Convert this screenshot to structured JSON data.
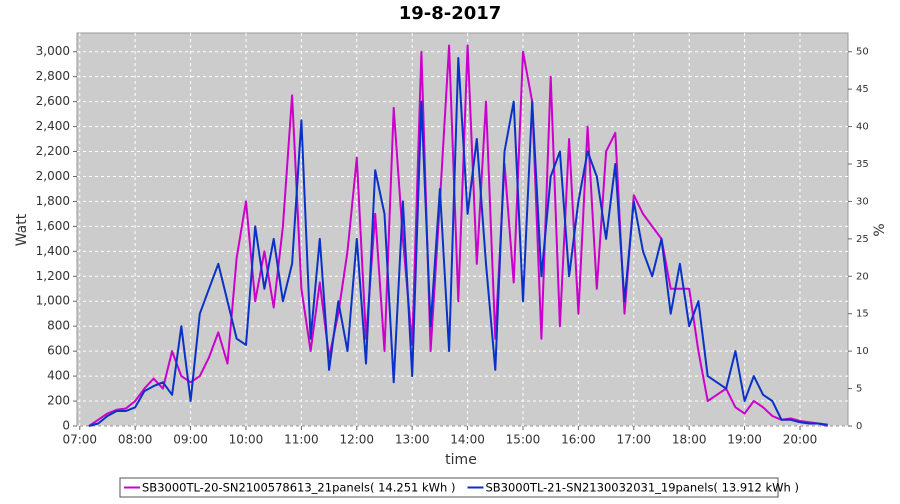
{
  "chart_data": {
    "type": "line",
    "title": "19-8-2017",
    "x_label": "time",
    "y_label": "Watt",
    "y2_label": "%",
    "x": [
      "07:10",
      "07:20",
      "07:30",
      "07:40",
      "07:50",
      "08:00",
      "08:10",
      "08:20",
      "08:30",
      "08:40",
      "08:50",
      "09:00",
      "09:10",
      "09:20",
      "09:30",
      "09:40",
      "09:50",
      "10:00",
      "10:10",
      "10:20",
      "10:30",
      "10:40",
      "10:50",
      "11:00",
      "11:10",
      "11:20",
      "11:30",
      "11:40",
      "11:50",
      "12:00",
      "12:10",
      "12:20",
      "12:30",
      "12:40",
      "12:50",
      "13:00",
      "13:10",
      "13:20",
      "13:30",
      "13:40",
      "13:50",
      "14:00",
      "14:10",
      "14:20",
      "14:30",
      "14:40",
      "14:50",
      "15:00",
      "15:10",
      "15:20",
      "15:30",
      "15:40",
      "15:50",
      "16:00",
      "16:10",
      "16:20",
      "16:30",
      "16:40",
      "16:50",
      "17:00",
      "17:10",
      "17:20",
      "17:30",
      "17:40",
      "17:50",
      "18:00",
      "18:10",
      "18:20",
      "18:30",
      "18:40",
      "18:50",
      "19:00",
      "19:10",
      "19:20",
      "19:30",
      "19:40",
      "19:50",
      "20:00",
      "20:10",
      "20:20",
      "20:30"
    ],
    "series": [
      {
        "name": "SB3000TL-20-SN2100578613_21panels( 14.251 kWh )",
        "color": "#cc00cc",
        "values": [
          0,
          50,
          100,
          130,
          140,
          200,
          300,
          380,
          300,
          600,
          400,
          350,
          400,
          550,
          750,
          500,
          1350,
          1800,
          1000,
          1400,
          950,
          1600,
          2650,
          1100,
          600,
          1150,
          550,
          900,
          1400,
          2150,
          700,
          1700,
          600,
          2550,
          1500,
          650,
          3000,
          600,
          1800,
          3050,
          1000,
          3050,
          1300,
          2600,
          700,
          2100,
          1150,
          3000,
          2600,
          700,
          2800,
          800,
          2300,
          900,
          2400,
          1100,
          2200,
          2350,
          900,
          1850,
          1700,
          1600,
          1500,
          1100,
          1100,
          1100,
          600,
          200,
          250,
          300,
          150,
          100,
          200,
          150,
          80,
          50,
          60,
          40,
          30,
          20,
          0
        ]
      },
      {
        "name": "SB3000TL-21-SN2130032031_19panels( 13.912 kWh )",
        "color": "#0a32c8",
        "values": [
          0,
          20,
          80,
          120,
          120,
          150,
          280,
          320,
          350,
          250,
          800,
          200,
          900,
          1100,
          1300,
          1000,
          700,
          650,
          1600,
          1100,
          1500,
          1000,
          1300,
          2450,
          700,
          1500,
          450,
          1000,
          600,
          1500,
          500,
          2050,
          1700,
          350,
          1800,
          400,
          2600,
          800,
          1900,
          600,
          2950,
          1700,
          2300,
          1300,
          450,
          2200,
          2600,
          1000,
          2600,
          1200,
          2000,
          2200,
          1200,
          1800,
          2200,
          2000,
          1500,
          2100,
          1000,
          1800,
          1400,
          1200,
          1500,
          900,
          1300,
          800,
          1000,
          400,
          350,
          300,
          600,
          200,
          400,
          250,
          200,
          50,
          50,
          30,
          20,
          20,
          10
        ]
      }
    ],
    "xlim": [
      "06:57",
      "20:52"
    ],
    "xticks": [
      "07:00",
      "08:00",
      "09:00",
      "10:00",
      "11:00",
      "12:00",
      "13:00",
      "14:00",
      "15:00",
      "16:00",
      "17:00",
      "18:00",
      "19:00",
      "20:00"
    ],
    "ylim": [
      0,
      3150
    ],
    "yticks": [
      0,
      200,
      400,
      600,
      800,
      {
        "value": 1000,
        "label": "1,000"
      },
      {
        "value": 1200,
        "label": "1,200"
      },
      {
        "value": 1400,
        "label": "1,400"
      },
      {
        "value": 1600,
        "label": "1,600"
      },
      {
        "value": 1800,
        "label": "1,800"
      },
      {
        "value": 2000,
        "label": "2,000"
      },
      {
        "value": 2200,
        "label": "2,200"
      },
      {
        "value": 2400,
        "label": "2,400"
      },
      {
        "value": 2600,
        "label": "2,600"
      },
      {
        "value": 2800,
        "label": "2,800"
      },
      {
        "value": 3000,
        "label": "3,000"
      }
    ],
    "y2lim": [
      0,
      52.5
    ],
    "y2ticks": [
      0,
      5,
      10,
      15,
      20,
      25,
      30,
      35,
      40,
      45,
      50
    ],
    "grid": true,
    "legend": "bottom"
  }
}
